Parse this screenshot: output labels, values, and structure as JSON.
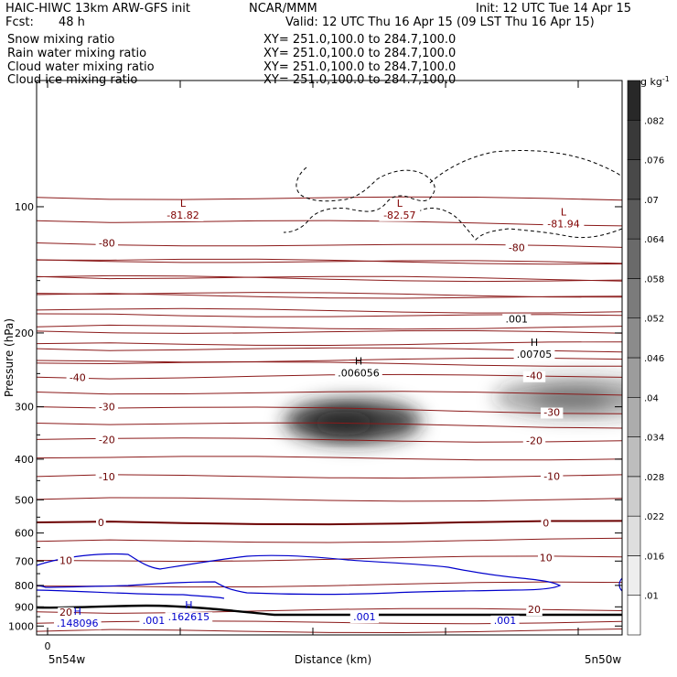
{
  "header": {
    "left_line1": "HAIC-HIWC 13km ARW-GFS init",
    "center_line1": "NCAR/MMM",
    "right_line1": "Init: 12 UTC Tue 14 Apr 15",
    "left_line2_label": "Fcst:",
    "left_line2_value": "48 h",
    "right_line2": "Valid: 12 UTC Thu 16 Apr 15 (09 LST Thu 16 Apr 15)"
  },
  "fields": [
    {
      "name": "Snow mixing ratio",
      "xy": "XY= 251.0,100.0 to 284.7,100.0",
      "color": "#000000"
    },
    {
      "name": "Rain water mixing ratio",
      "xy": "XY= 251.0,100.0 to 284.7,100.0",
      "color": "#cc0000"
    },
    {
      "name": "Cloud water mixing ratio",
      "xy": "XY= 251.0,100.0 to 284.7,100.0",
      "color": "#0000cc"
    },
    {
      "name": "Cloud ice mixing ratio",
      "xy": "XY= 251.0,100.0 to 284.7,100.0",
      "color": "#000000"
    }
  ],
  "chart_data": {
    "type": "heatmap",
    "description": "Vertical cross-section: shaded snow mixing ratio with temperature (brown), cloud water (blue) and cloud ice (dashed) contours",
    "ylabel": "Pressure (hPa)",
    "xlabel": "Distance (km)",
    "x_start_label": "5n54w",
    "x_end_label": "5n50w",
    "x_origin_tick": "0",
    "y_ticks": [
      100,
      200,
      300,
      400,
      500,
      600,
      700,
      800,
      900,
      1000
    ],
    "ylim": [
      1050,
      50
    ],
    "y_scale": "log",
    "colorbar": {
      "unit": "g kg",
      "unit_exp": "-1",
      "levels": [
        ".01",
        ".016",
        ".022",
        ".028",
        ".034",
        ".04",
        ".046",
        ".052",
        ".058",
        ".064",
        ".07",
        ".076",
        ".082"
      ]
    },
    "temperature_labels": [
      {
        "text": "-80",
        "x": 0.12,
        "p": 122
      },
      {
        "text": "-80",
        "x": 0.82,
        "p": 125
      },
      {
        "text": "-40",
        "x": 0.07,
        "p": 255
      },
      {
        "text": "-40",
        "x": 0.85,
        "p": 253
      },
      {
        "text": "-30",
        "x": 0.12,
        "p": 300
      },
      {
        "text": "-30",
        "x": 0.88,
        "p": 309
      },
      {
        "text": "-20",
        "x": 0.12,
        "p": 359
      },
      {
        "text": "-20",
        "x": 0.85,
        "p": 361
      },
      {
        "text": "-10",
        "x": 0.12,
        "p": 440
      },
      {
        "text": "-10",
        "x": 0.88,
        "p": 439
      },
      {
        "text": "0",
        "x": 0.11,
        "p": 566
      },
      {
        "text": "0",
        "x": 0.87,
        "p": 567
      },
      {
        "text": "10",
        "x": 0.05,
        "p": 697
      },
      {
        "text": "10",
        "x": 0.87,
        "p": 686
      },
      {
        "text": "20",
        "x": 0.05,
        "p": 925
      },
      {
        "text": "20",
        "x": 0.85,
        "p": 913
      }
    ],
    "extrema": [
      {
        "mark": "L",
        "value": "-81.82",
        "x": 0.25,
        "p": 103,
        "color": "#800000"
      },
      {
        "mark": "L",
        "value": "-82.57",
        "x": 0.62,
        "p": 103,
        "color": "#800000"
      },
      {
        "mark": "L",
        "value": "-81.94",
        "x": 0.9,
        "p": 108,
        "color": "#800000"
      },
      {
        "mark": "H",
        "value": ".006056",
        "x": 0.55,
        "p": 245,
        "color": "#000000"
      },
      {
        "mark": "H",
        "value": ".00705",
        "x": 0.85,
        "p": 221,
        "color": "#000000"
      },
      {
        "mark": "H",
        "value": ".148096",
        "x": 0.07,
        "p": 970,
        "color": "#0000cc"
      },
      {
        "mark": "H",
        "value": ".162615",
        "x": 0.26,
        "p": 936,
        "color": "#0000cc"
      }
    ],
    "contour_labels": [
      {
        "text": ".001",
        "x": 0.82,
        "p": 185,
        "color": "#000000"
      },
      {
        "text": ".001",
        "x": 0.2,
        "p": 968,
        "color": "#0000cc"
      },
      {
        "text": ".001",
        "x": 0.56,
        "p": 950,
        "color": "#0000cc"
      },
      {
        "text": ".001",
        "x": 0.8,
        "p": 968,
        "color": "#0000cc"
      }
    ],
    "snow_maxima": [
      {
        "x": 0.54,
        "p": 325,
        "value": 0.082
      },
      {
        "x": 0.93,
        "p": 285,
        "value": 0.04
      }
    ],
    "isotherms": [
      {
        "t": -80,
        "p0": 122,
        "p1": 125
      },
      {
        "t": -40,
        "p0": 255,
        "p1": 253
      },
      {
        "t": -30,
        "p0": 300,
        "p1": 309
      },
      {
        "t": -20,
        "p0": 359,
        "p1": 361
      },
      {
        "t": -10,
        "p0": 440,
        "p1": 439
      },
      {
        "t": 0,
        "p0": 566,
        "p1": 567
      },
      {
        "t": 10,
        "p0": 697,
        "p1": 686
      },
      {
        "t": 20,
        "p0": 925,
        "p1": 913
      }
    ]
  }
}
